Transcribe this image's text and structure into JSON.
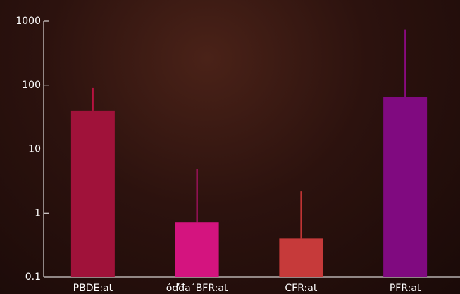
{
  "chart_data": {
    "type": "bar",
    "log_scale": true,
    "categories": [
      "PBDE:at",
      "óďđa´BFR:at",
      "CFR:at",
      "PFR:at"
    ],
    "values": [
      40,
      0.72,
      0.4,
      65
    ],
    "errors": [
      50,
      4.2,
      1.8,
      680
    ],
    "colors": [
      "#a0123a",
      "#d4147f",
      "#c63a3a",
      "#800a80"
    ],
    "error_colors": [
      "#b81240",
      "#c8107a",
      "#c03434",
      "#8a0a80"
    ],
    "ylim": [
      0.1,
      1000
    ],
    "yticks": [
      0.1,
      1,
      10,
      100,
      1000
    ]
  }
}
